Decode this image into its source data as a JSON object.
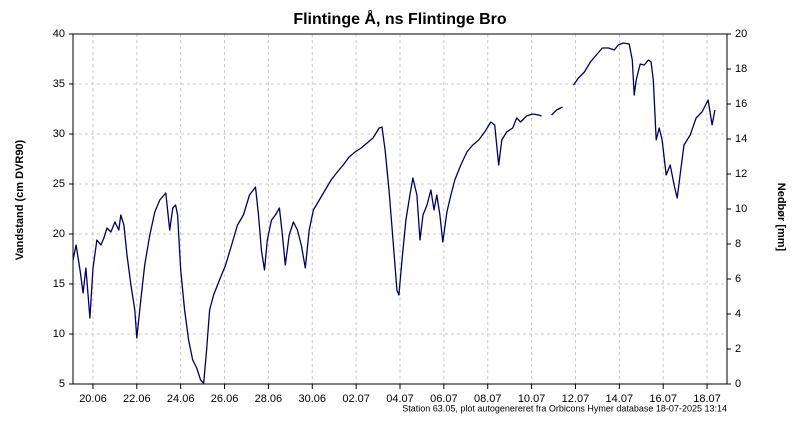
{
  "chart_data": {
    "type": "line",
    "title": "Flintinge Å, ns Flintinge Bro",
    "y_label": "Vandstand (cm DVR90)",
    "y2_label": "Nedbør [mm]",
    "footnote": "Station 63.05, plot autogenereret fra Orbicons Hymer database 18-07-2025 13:14",
    "grid": true,
    "xlim": [
      19.09,
      48.91
    ],
    "xticks": [
      {
        "value": 20,
        "label": "20.06"
      },
      {
        "value": 22,
        "label": "22.06"
      },
      {
        "value": 24,
        "label": "24.06"
      },
      {
        "value": 26,
        "label": "26.06"
      },
      {
        "value": 28,
        "label": "28.06"
      },
      {
        "value": 30,
        "label": "30.06"
      },
      {
        "value": 32,
        "label": "02.07"
      },
      {
        "value": 34,
        "label": "04.07"
      },
      {
        "value": 36,
        "label": "06.07"
      },
      {
        "value": 38,
        "label": "08.07"
      },
      {
        "value": 40,
        "label": "10.07"
      },
      {
        "value": 42,
        "label": "12.07"
      },
      {
        "value": 44,
        "label": "14.07"
      },
      {
        "value": 46,
        "label": "16.07"
      },
      {
        "value": 48,
        "label": "18.07"
      }
    ],
    "ylim": [
      5,
      40
    ],
    "yticks": [
      5,
      10,
      15,
      20,
      25,
      30,
      35,
      40
    ],
    "y2lim": [
      0,
      20
    ],
    "y2ticks": [
      0,
      2,
      4,
      6,
      8,
      10,
      12,
      14,
      16,
      18,
      20
    ],
    "x": [
      19.09,
      19.23,
      19.41,
      19.55,
      19.68,
      19.86,
      20.0,
      20.18,
      20.36,
      20.5,
      20.64,
      20.82,
      21.0,
      21.18,
      21.27,
      21.41,
      21.55,
      21.73,
      21.91,
      22.0,
      22.18,
      22.36,
      22.59,
      22.82,
      23.05,
      23.32,
      23.5,
      23.64,
      23.77,
      23.86,
      24.0,
      24.18,
      24.36,
      24.55,
      24.73,
      24.91,
      25.05,
      25.18,
      25.32,
      25.5,
      25.77,
      26.05,
      26.32,
      26.59,
      26.86,
      27.14,
      27.41,
      27.55,
      27.68,
      27.82,
      27.95,
      28.14,
      28.32,
      28.5,
      28.64,
      28.77,
      28.95,
      29.14,
      29.32,
      29.5,
      29.68,
      29.86,
      30.05,
      30.32,
      30.59,
      30.86,
      31.14,
      31.41,
      31.68,
      31.95,
      32.23,
      32.5,
      32.77,
      33.05,
      33.18,
      33.32,
      33.5,
      33.68,
      33.86,
      33.95,
      34.09,
      34.27,
      34.45,
      34.59,
      34.77,
      34.91,
      35.05,
      35.23,
      35.41,
      35.55,
      35.68,
      35.82,
      35.95,
      36.14,
      36.32,
      36.5,
      36.77,
      37.05,
      37.32,
      37.59,
      37.86,
      38.14,
      38.32,
      38.5,
      38.64,
      38.86,
      39.14,
      39.32,
      39.5,
      39.77,
      40.05,
      40.32,
      40.45,
      40.68,
      40.91,
      41.14,
      41.41,
      41.68,
      41.91,
      42.14,
      42.41,
      42.68,
      42.95,
      43.23,
      43.5,
      43.77,
      43.95,
      44.18,
      44.45,
      44.59,
      44.68,
      44.77,
      44.95,
      45.14,
      45.32,
      45.45,
      45.55,
      45.68,
      45.82,
      45.95,
      46.14,
      46.32,
      46.5,
      46.64,
      46.77,
      46.95,
      47.23,
      47.5,
      47.77,
      48.05,
      48.23,
      48.36
    ],
    "series": [
      {
        "name": "Vandstand",
        "color": "#000060",
        "values": [
          17.4,
          18.9,
          16.4,
          14.1,
          16.6,
          11.6,
          16.6,
          19.4,
          18.9,
          19.6,
          20.6,
          20.2,
          21.2,
          20.4,
          21.9,
          20.9,
          17.9,
          14.9,
          12.4,
          9.6,
          13.4,
          16.9,
          19.9,
          22.2,
          23.4,
          24.1,
          20.4,
          22.6,
          22.9,
          21.9,
          16.4,
          12.4,
          9.4,
          7.4,
          6.6,
          5.4,
          5.1,
          8.4,
          12.4,
          13.9,
          15.4,
          16.9,
          18.9,
          20.9,
          21.9,
          23.9,
          24.7,
          21.9,
          18.4,
          16.4,
          19.4,
          21.4,
          21.9,
          22.6,
          19.9,
          16.9,
          19.9,
          21.2,
          20.4,
          18.9,
          16.6,
          20.4,
          22.4,
          23.4,
          24.4,
          25.4,
          26.2,
          26.9,
          27.7,
          28.2,
          28.6,
          29.1,
          29.6,
          30.6,
          30.7,
          28.4,
          24.4,
          19.4,
          14.4,
          13.9,
          17.4,
          21.4,
          23.9,
          25.6,
          23.9,
          19.4,
          21.9,
          22.9,
          24.4,
          22.4,
          23.9,
          21.9,
          19.2,
          22.2,
          23.9,
          25.4,
          26.9,
          28.2,
          28.9,
          29.4,
          30.2,
          31.2,
          30.9,
          26.9,
          29.4,
          30.2,
          30.6,
          31.6,
          31.2,
          31.8,
          32.0,
          31.9,
          31.8,
          null,
          31.9,
          32.4,
          32.7,
          null,
          34.9,
          35.6,
          36.2,
          37.2,
          37.9,
          38.6,
          38.6,
          38.4,
          38.9,
          39.1,
          39.0,
          37.4,
          33.9,
          35.4,
          37.0,
          36.9,
          37.4,
          37.2,
          35.4,
          29.4,
          30.6,
          29.4,
          25.9,
          26.9,
          24.9,
          23.6,
          25.9,
          28.9,
          29.9,
          31.6,
          32.2,
          33.4,
          30.9,
          32.4
        ]
      }
    ]
  }
}
